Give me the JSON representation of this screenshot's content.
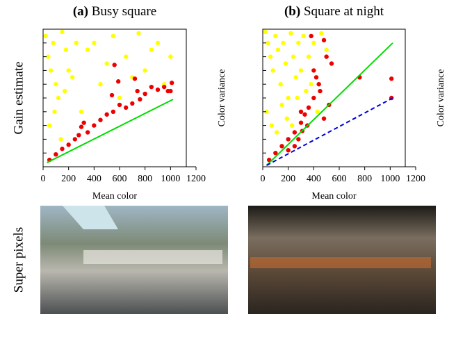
{
  "row_label": "Super pixels",
  "chart_data": [
    {
      "type": "scatter",
      "title_label": "(a)",
      "title": "Busy square",
      "xlabel": "Mean color",
      "ylabel": "Gain estimate",
      "right_label": "Color variance",
      "xlim": [
        0,
        1200
      ],
      "xticks": [
        0,
        200,
        400,
        600,
        800,
        1000,
        1200
      ],
      "ylim": [
        0,
        10
      ],
      "yticks": [
        {
          "value": 1,
          "label": null
        },
        {
          "value": 2,
          "label": null
        },
        {
          "value": 3,
          "label": null
        },
        {
          "value": 4,
          "label": null
        },
        {
          "value": 5,
          "label": null
        },
        {
          "value": 6,
          "label": null
        },
        {
          "value": 7,
          "label": null
        },
        {
          "value": 8,
          "label": null
        },
        {
          "value": 9,
          "label": null
        }
      ],
      "series": [
        {
          "color": "#ffff00",
          "x": [
            20,
            40,
            60,
            80,
            100,
            120,
            150,
            180,
            200,
            230,
            260,
            300,
            350,
            400,
            450,
            500,
            550,
            600,
            650,
            700,
            750,
            800,
            850,
            900,
            950,
            1000,
            50,
            90,
            140,
            170
          ],
          "values": [
            9.5,
            8,
            7,
            9,
            6,
            5,
            9.8,
            8.5,
            7,
            6.5,
            9,
            4,
            8.5,
            9,
            6,
            7.5,
            9.5,
            5,
            8,
            6.5,
            9.7,
            7,
            8.5,
            9,
            6,
            8,
            3,
            4,
            2,
            5.5
          ]
        },
        {
          "color": "#ee0000",
          "x": [
            50,
            100,
            150,
            200,
            250,
            280,
            300,
            320,
            350,
            400,
            450,
            500,
            540,
            560,
            600,
            650,
            700,
            720,
            740,
            760,
            800,
            850,
            900,
            950,
            980,
            1000,
            1010,
            590,
            550
          ],
          "values": [
            0.5,
            0.9,
            1.3,
            1.6,
            2.0,
            2.3,
            2.9,
            3.2,
            2.5,
            3.0,
            3.4,
            3.8,
            5.2,
            7.4,
            4.5,
            4.3,
            4.6,
            6.4,
            5.5,
            4.9,
            5.3,
            5.8,
            5.6,
            5.8,
            5.5,
            5.5,
            6.1,
            6.2,
            4.0
          ]
        }
      ],
      "lines": [
        {
          "color": "#00dd00",
          "dash": false,
          "x": [
            30,
            1020
          ],
          "values": [
            0.3,
            4.9
          ]
        }
      ]
    },
    {
      "type": "scatter",
      "title_label": "(b)",
      "title": "Square at night",
      "xlabel": "Mean color",
      "right_label": "Color variance",
      "xlim": [
        0,
        1200
      ],
      "xticks": [
        0,
        200,
        400,
        600,
        800,
        1000,
        1200
      ],
      "ylim": [
        0,
        10
      ],
      "yticks": [
        {
          "value": 1,
          "label": null
        },
        {
          "value": 2,
          "label": null
        },
        {
          "value": 3,
          "label": null
        },
        {
          "value": 4,
          "label": null
        },
        {
          "value": 5,
          "label": null
        },
        {
          "value": 6,
          "label": null
        },
        {
          "value": 7,
          "label": null
        },
        {
          "value": 8,
          "label": null
        },
        {
          "value": 9,
          "label": null
        }
      ],
      "series": [
        {
          "color": "#ffff00",
          "x": [
            20,
            40,
            60,
            80,
            100,
            120,
            140,
            160,
            180,
            200,
            220,
            240,
            260,
            280,
            300,
            320,
            340,
            360,
            380,
            400,
            430,
            460,
            500,
            30,
            70,
            110,
            150,
            190,
            230,
            270
          ],
          "values": [
            9.8,
            9,
            8,
            7,
            9.5,
            8.5,
            6,
            9,
            7.5,
            5,
            9.7,
            8,
            6.5,
            9,
            7,
            9.5,
            5.5,
            8,
            6,
            9,
            4,
            9.7,
            8.5,
            4,
            3,
            2.5,
            4.5,
            3.5,
            3,
            5
          ]
        },
        {
          "color": "#ee0000",
          "x": [
            50,
            100,
            150,
            200,
            250,
            300,
            330,
            360,
            400,
            420,
            450,
            480,
            500,
            520,
            540,
            250,
            280,
            310,
            350,
            760,
            1010,
            1010,
            200,
            300,
            440,
            480,
            400,
            380
          ],
          "values": [
            0.5,
            1.0,
            1.5,
            2.0,
            2.5,
            3.2,
            3.8,
            4.3,
            5.0,
            6.5,
            5.5,
            9.2,
            8.0,
            4.5,
            7.5,
            1.5,
            2.0,
            2.6,
            3.0,
            6.5,
            6.4,
            5.0,
            1.2,
            4.0,
            6.0,
            3.5,
            7.0,
            9.5
          ]
        }
      ],
      "lines": [
        {
          "color": "#00dd00",
          "dash": false,
          "x": [
            30,
            1020
          ],
          "values": [
            0.1,
            9.0
          ]
        },
        {
          "color": "#0000dd",
          "dash": true,
          "x": [
            30,
            1020
          ],
          "values": [
            0.1,
            5.0
          ]
        }
      ]
    }
  ]
}
